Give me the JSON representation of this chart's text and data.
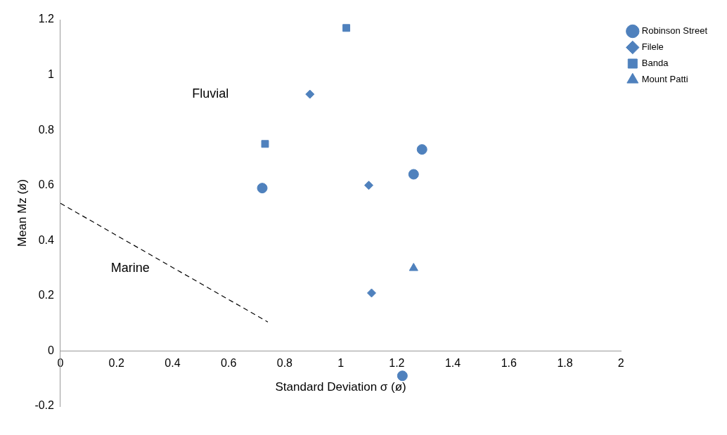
{
  "chart_data": {
    "type": "scatter",
    "xlabel": "Standard Deviation σ (ø)",
    "ylabel": "Mean Mz (ø)",
    "xlim": [
      0,
      2
    ],
    "xticks": [
      0,
      0.2,
      0.4,
      0.6,
      0.8,
      1,
      1.2,
      1.4,
      1.6,
      1.8,
      2
    ],
    "ylim": [
      -0.2,
      1.2
    ],
    "yticks": [
      -0.2,
      0,
      0.2,
      0.4,
      0.6,
      0.8,
      1,
      1.2
    ],
    "grid": false,
    "legend": "top right",
    "annotations": [
      "Fluvial",
      "Marine"
    ],
    "series": [
      {
        "name": "Robinson Street",
        "color": "#4f81bd",
        "marker": "circle",
        "x": [
          0.72,
          1.26,
          1.29,
          1.22
        ],
        "values": [
          0.59,
          0.64,
          0.73,
          -0.09
        ]
      },
      {
        "name": "Filele",
        "color": "#4f81bd",
        "marker": "diamond",
        "x": [
          0.89,
          1.1,
          1.11
        ],
        "values": [
          0.93,
          0.6,
          0.21
        ]
      },
      {
        "name": "Banda",
        "color": "#4f81bd",
        "marker": "square",
        "x": [
          1.02,
          0.73
        ],
        "values": [
          1.17,
          0.75
        ]
      },
      {
        "name": "Mount Patti",
        "color": "#4f81bd",
        "marker": "triangle",
        "x": [
          1.26
        ],
        "values": [
          0.3
        ]
      },
      {
        "type": "line",
        "color": "#000000",
        "line_style": "dashed",
        "marker": "none",
        "x": [
          0,
          0.74
        ],
        "values": [
          0.535,
          0.105
        ]
      }
    ]
  }
}
